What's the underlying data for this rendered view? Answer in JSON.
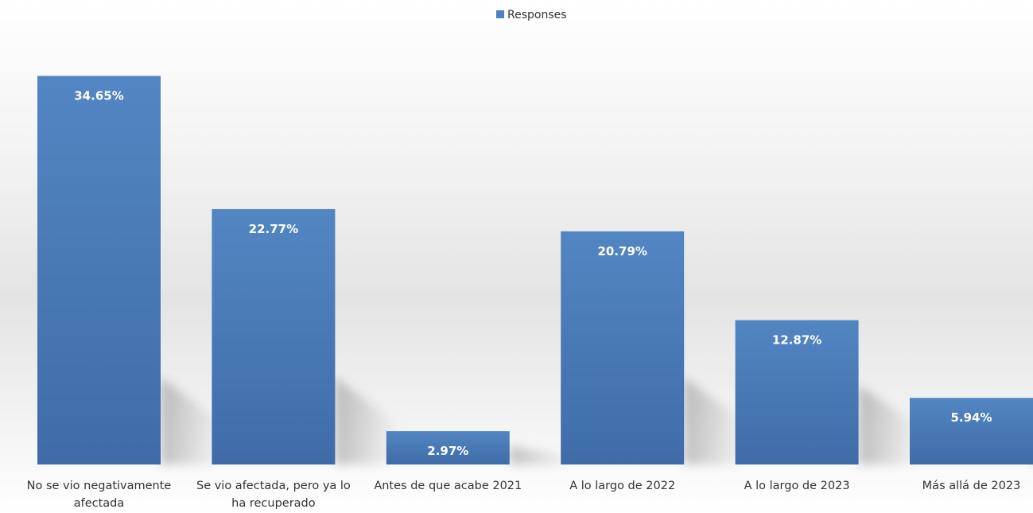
{
  "chart_data": {
    "type": "bar",
    "categories": [
      [
        "No se vio negativamente",
        "afectada"
      ],
      [
        "Se vio afectada, pero ya lo",
        "ha recuperado"
      ],
      [
        "Antes de que acabe 2021"
      ],
      [
        "A lo largo de 2022"
      ],
      [
        "A lo largo de 2023"
      ],
      [
        "Más allá de 2023"
      ]
    ],
    "series": [
      {
        "name": "Responses",
        "values": [
          34.65,
          22.77,
          2.97,
          20.79,
          12.87,
          5.94
        ],
        "labels": [
          "34.65%",
          "22.77%",
          "2.97%",
          "20.79%",
          "12.87%",
          "5.94%"
        ]
      }
    ],
    "ylim": [
      0,
      40
    ],
    "grid": false,
    "legend_position": "top-center",
    "colors": {
      "bar": "#4f81bd",
      "bar_dark": "#3d6aa3",
      "label": "#ffffff",
      "text": "#333333"
    }
  }
}
